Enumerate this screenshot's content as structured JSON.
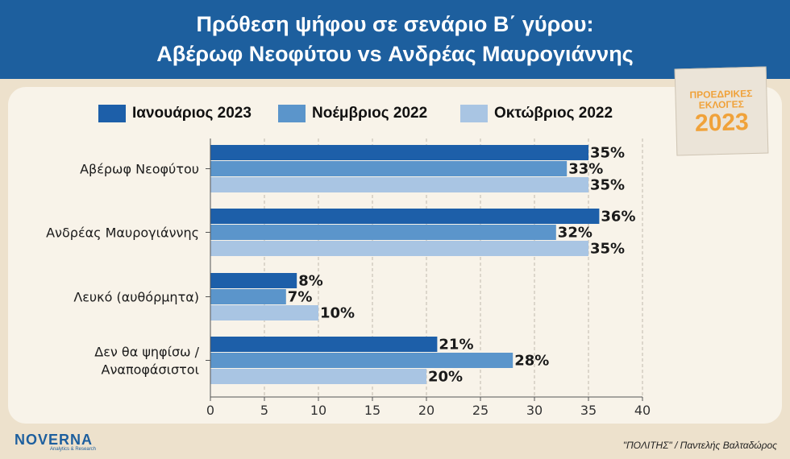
{
  "header": {
    "title_line1": "Πρόθεση ψήφου σε σενάριο Β΄ γύρου:",
    "title_line2": "Αβέρωφ Νεοφύτου vs Ανδρέας Μαυρογιάννης"
  },
  "badge": {
    "line1": "ΠΡΟΕΔΡΙΚΕΣ",
    "line2": "ΕΚΛΟΓΕΣ",
    "line3": "2023"
  },
  "footer": {
    "logo": "NOVERNA",
    "logo_sub": "Analytics & Research",
    "credit": "\"ΠΟΛΙΤΗΣ\" / Παντελής Βαλταδώρος"
  },
  "colors": {
    "header_bg": "#1d5f9e",
    "panel_bg": "#f8f3e9",
    "page_bg": "#ede1cc",
    "badge_text": "#f0a23a"
  },
  "chart_data": {
    "type": "bar",
    "orientation": "horizontal",
    "title": "",
    "xlabel": "",
    "ylabel": "",
    "categories": [
      [
        "Αβέρωφ Νεοφύτου"
      ],
      [
        "Ανδρέας Μαυρογιάννης"
      ],
      [
        "Λευκό (αυθόρμητα)"
      ],
      [
        "Δεν θα ψηφίσω /",
        "Αναποφάσιστοι"
      ]
    ],
    "series": [
      {
        "name": "Ιανουάριος 2023",
        "color": "#1d5fa9",
        "values": [
          35,
          36,
          8,
          21
        ]
      },
      {
        "name": "Νοέμβριος 2022",
        "color": "#5b95cb",
        "values": [
          33,
          32,
          7,
          28
        ]
      },
      {
        "name": "Οκτώβριος 2022",
        "color": "#a9c5e3",
        "values": [
          35,
          35,
          10,
          20
        ]
      }
    ],
    "value_suffix": "%",
    "xlim": [
      0,
      40
    ],
    "xticks": [
      0,
      5,
      10,
      15,
      20,
      25,
      30,
      35,
      40
    ],
    "grid": true,
    "legend_position": "top"
  }
}
